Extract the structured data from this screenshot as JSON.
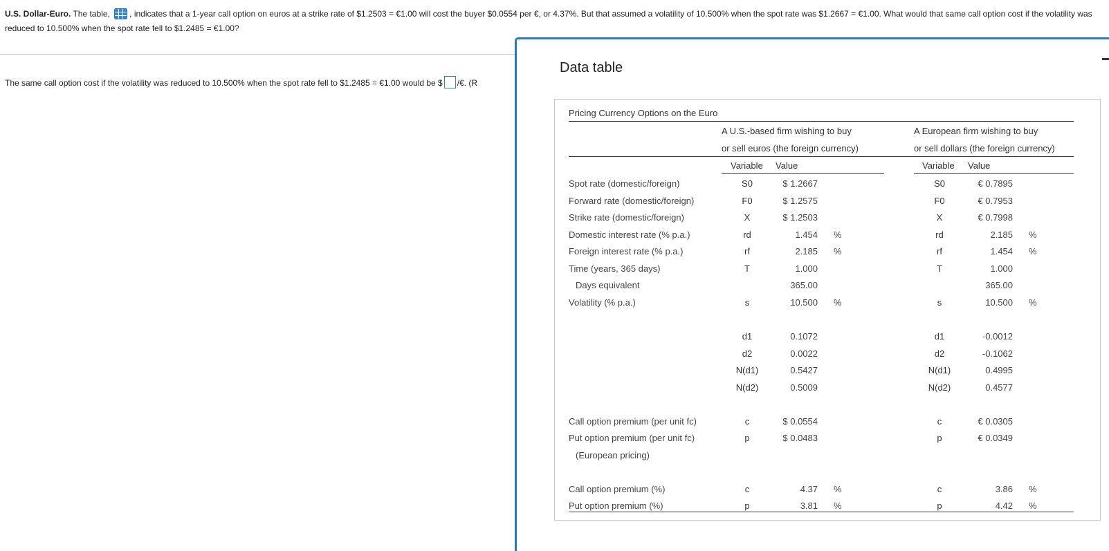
{
  "question": {
    "bold_prefix": "U.S. Dollar-Euro.",
    "part1": " The table, ",
    "part2": ", indicates that a 1-year call option on euros at a strike rate of $1.2503 = €1.00 will cost the buyer $0.0554 per €, or 4.37%. But that assumed a volatility of 10.500% when the spot rate was $1.2667 = €1.00. What would that same call option cost if the volatility was reduced to 10.500% when the spot rate fell to $1.2485 = €1.00?"
  },
  "answer": {
    "before": "The same call option cost if the volatility was reduced to 10.500% when the spot rate fell to $1.2485 = €1.00 would be $",
    "after": "/€.  (R"
  },
  "modal": {
    "title": "Data table"
  },
  "table": {
    "title": "Pricing Currency Options on the Euro",
    "us_header_1": "A U.S.-based firm wishing to buy",
    "us_header_2": "or sell euros (the foreign currency)",
    "eu_header_1": "A European firm wishing to buy",
    "eu_header_2": "or sell dollars (the foreign currency)",
    "col_variable": "Variable",
    "col_value": "Value",
    "rows": [
      {
        "label": "Spot rate (domestic/foreign)",
        "us_var": "S0",
        "us_val": "$ 1.2667",
        "us_unit": "",
        "eu_var": "S0",
        "eu_val": "€ 0.7895",
        "eu_unit": ""
      },
      {
        "label": "Forward rate (domestic/foreign)",
        "us_var": "F0",
        "us_val": "$ 1.2575",
        "us_unit": "",
        "eu_var": "F0",
        "eu_val": "€ 0.7953",
        "eu_unit": ""
      },
      {
        "label": "Strike rate (domestic/foreign)",
        "us_var": "X",
        "us_val": "$ 1.2503",
        "us_unit": "",
        "eu_var": "X",
        "eu_val": "€ 0.7998",
        "eu_unit": ""
      },
      {
        "label": "Domestic interest rate (% p.a.)",
        "us_var": "rd",
        "us_val": "1.454",
        "us_unit": "%",
        "eu_var": "rd",
        "eu_val": "2.185",
        "eu_unit": "%"
      },
      {
        "label": "Foreign interest rate (% p.a.)",
        "us_var": "rf",
        "us_val": "2.185",
        "us_unit": "%",
        "eu_var": "rf",
        "eu_val": "1.454",
        "eu_unit": "%"
      },
      {
        "label": "Time (years, 365 days)",
        "us_var": "T",
        "us_val": "1.000",
        "us_unit": "",
        "eu_var": "T",
        "eu_val": "1.000",
        "eu_unit": ""
      },
      {
        "label": "Days equivalent",
        "us_var": "",
        "us_val": "365.00",
        "us_unit": "",
        "eu_var": "",
        "eu_val": "365.00",
        "eu_unit": ""
      },
      {
        "label": "Volatility (% p.a.)",
        "us_var": "s",
        "us_val": "10.500",
        "us_unit": "%",
        "eu_var": "s",
        "eu_val": "10.500",
        "eu_unit": "%"
      },
      {
        "label": "",
        "us_var": "",
        "us_val": "",
        "us_unit": "",
        "eu_var": "",
        "eu_val": "",
        "eu_unit": ""
      },
      {
        "label": "",
        "us_var": "d1",
        "us_val": "0.1072",
        "us_unit": "",
        "eu_var": "d1",
        "eu_val": "-0.0012",
        "eu_unit": ""
      },
      {
        "label": "",
        "us_var": "d2",
        "us_val": "0.0022",
        "us_unit": "",
        "eu_var": "d2",
        "eu_val": "-0.1062",
        "eu_unit": ""
      },
      {
        "label": "",
        "us_var": "N(d1)",
        "us_val": "0.5427",
        "us_unit": "",
        "eu_var": "N(d1)",
        "eu_val": "0.4995",
        "eu_unit": ""
      },
      {
        "label": "",
        "us_var": "N(d2)",
        "us_val": "0.5009",
        "us_unit": "",
        "eu_var": "N(d2)",
        "eu_val": "0.4577",
        "eu_unit": ""
      },
      {
        "label": "",
        "us_var": "",
        "us_val": "",
        "us_unit": "",
        "eu_var": "",
        "eu_val": "",
        "eu_unit": ""
      },
      {
        "label": "Call option premium (per unit fc)",
        "us_var": "c",
        "us_val": "$ 0.0554",
        "us_unit": "",
        "eu_var": "c",
        "eu_val": "€ 0.0305",
        "eu_unit": ""
      },
      {
        "label": "Put option premium (per unit fc)",
        "us_var": "p",
        "us_val": "$ 0.0483",
        "us_unit": "",
        "eu_var": "p",
        "eu_val": "€ 0.0349",
        "eu_unit": ""
      },
      {
        "label": "(European pricing)",
        "us_var": "",
        "us_val": "",
        "us_unit": "",
        "eu_var": "",
        "eu_val": "",
        "eu_unit": ""
      },
      {
        "label": "",
        "us_var": "",
        "us_val": "",
        "us_unit": "",
        "eu_var": "",
        "eu_val": "",
        "eu_unit": ""
      },
      {
        "label": "Call option premium (%)",
        "us_var": "c",
        "us_val": "4.37",
        "us_unit": "%",
        "eu_var": "c",
        "eu_val": "3.86",
        "eu_unit": "%"
      },
      {
        "label": "Put option premium (%)",
        "us_var": "p",
        "us_val": "3.81",
        "us_unit": "%",
        "eu_var": "p",
        "eu_val": "4.42",
        "eu_unit": "%"
      }
    ]
  }
}
